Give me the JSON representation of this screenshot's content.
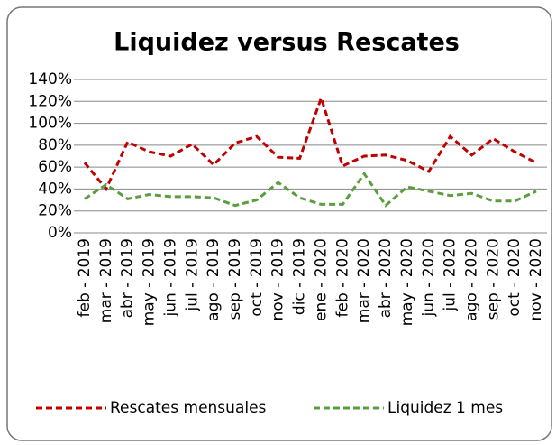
{
  "chart_data": {
    "type": "line",
    "title": "Liquidez versus Rescates",
    "categories": [
      "feb - 2019",
      "mar - 2019",
      "abr - 2019",
      "may - 2019",
      "jun - 2019",
      "jul - 2019",
      "ago - 2019",
      "sep - 2019",
      "oct - 2019",
      "nov - 2019",
      "dic - 2019",
      "ene - 2020",
      "feb - 2020",
      "mar - 2020",
      "abr - 2020",
      "may - 2020",
      "jun - 2020",
      "jul - 2020",
      "ago - 2020",
      "sep - 2020",
      "oct - 2020",
      "nov - 2020"
    ],
    "series": [
      {
        "name": "Rescates mensuales",
        "color": "#c00000",
        "values": [
          64,
          40,
          83,
          74,
          70,
          81,
          62,
          82,
          88,
          69,
          68,
          123,
          61,
          70,
          71,
          66,
          56,
          88,
          71,
          86,
          74,
          64
        ]
      },
      {
        "name": "Liquidez 1 mes",
        "color": "#5b9e3f",
        "values": [
          31,
          44,
          31,
          35,
          33,
          33,
          32,
          25,
          30,
          46,
          32,
          26,
          26,
          54,
          25,
          42,
          38,
          34,
          36,
          29,
          29,
          38
        ]
      }
    ],
    "ylim": [
      0,
      140
    ],
    "yticks": [
      {
        "value": 0,
        "label": "0%"
      },
      {
        "value": 20,
        "label": "20%"
      },
      {
        "value": 40,
        "label": "40%"
      },
      {
        "value": 60,
        "label": "60%"
      },
      {
        "value": 80,
        "label": "80%"
      },
      {
        "value": 100,
        "label": "100%"
      },
      {
        "value": 120,
        "label": "120%"
      },
      {
        "value": 140,
        "label": "140%"
      }
    ],
    "grid": true,
    "legend": "bottom"
  }
}
